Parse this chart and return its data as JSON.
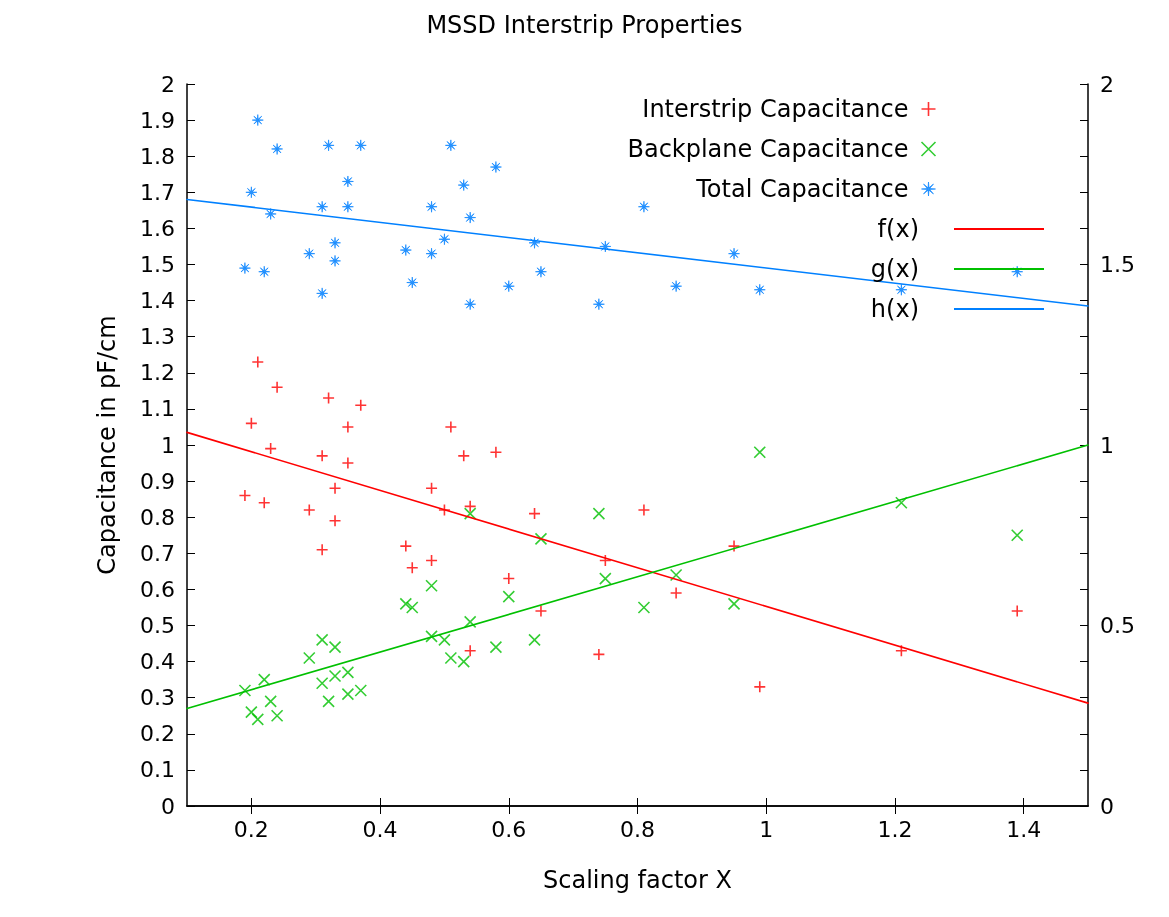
{
  "chart_data": {
    "type": "scatter",
    "title": "MSSD Interstrip Properties",
    "xlabel": "Scaling factor X",
    "ylabel": "Capacitance in pF/cm",
    "xlim": [
      0.1,
      1.5
    ],
    "xticks": [
      0.2,
      0.4,
      0.6,
      0.8,
      1,
      1.2,
      1.4
    ],
    "ylim": [
      0,
      2
    ],
    "yticks": [
      0,
      0.1,
      0.2,
      0.3,
      0.4,
      0.5,
      0.6,
      0.7,
      0.8,
      0.9,
      1,
      1.1,
      1.2,
      1.3,
      1.4,
      1.5,
      1.6,
      1.7,
      1.8,
      1.9,
      2
    ],
    "y2lim": [
      0,
      2
    ],
    "y2ticks": [
      0,
      {
        "value": 0.1,
        "label": null
      },
      {
        "value": 0.2,
        "label": null
      },
      {
        "value": 0.3,
        "label": null
      },
      {
        "value": 0.4,
        "label": null
      },
      0.5,
      {
        "value": 0.6,
        "label": null
      },
      {
        "value": 0.7,
        "label": null
      },
      {
        "value": 0.8,
        "label": null
      },
      {
        "value": 0.9,
        "label": null
      },
      1,
      {
        "value": 1.1,
        "label": null
      },
      {
        "value": 1.2,
        "label": null
      },
      {
        "value": 1.3,
        "label": null
      },
      {
        "value": 1.4,
        "label": null
      },
      1.5,
      {
        "value": 1.6,
        "label": null
      },
      {
        "value": 1.7,
        "label": null
      },
      {
        "value": 1.8,
        "label": null
      },
      {
        "value": 1.9,
        "label": null
      },
      2
    ],
    "legend": "top right",
    "series": [
      {
        "name": "Interstrip Capacitance",
        "color": "#ff0000",
        "marker": "plus",
        "x": [
          0.19,
          0.2,
          0.21,
          0.22,
          0.23,
          0.24,
          0.29,
          0.31,
          0.31,
          0.32,
          0.33,
          0.33,
          0.35,
          0.35,
          0.37,
          0.44,
          0.45,
          0.48,
          0.48,
          0.5,
          0.51,
          0.53,
          0.54,
          0.54,
          0.58,
          0.6,
          0.64,
          0.65,
          0.74,
          0.75,
          0.81,
          0.86,
          0.95,
          0.99,
          1.21,
          1.39
        ],
        "values": [
          0.86,
          1.06,
          1.23,
          0.84,
          0.99,
          1.16,
          0.82,
          0.97,
          0.71,
          1.13,
          0.88,
          0.79,
          1.05,
          0.95,
          1.11,
          0.72,
          0.66,
          0.88,
          0.68,
          0.82,
          1.05,
          0.97,
          0.83,
          0.43,
          0.98,
          0.63,
          0.81,
          0.54,
          0.42,
          0.68,
          0.82,
          0.59,
          0.72,
          0.33,
          0.43,
          0.54
        ]
      },
      {
        "name": "Backplane Capacitance",
        "color": "#00c000",
        "marker": "cross",
        "x": [
          0.19,
          0.2,
          0.21,
          0.22,
          0.23,
          0.24,
          0.29,
          0.31,
          0.31,
          0.32,
          0.33,
          0.33,
          0.35,
          0.35,
          0.37,
          0.44,
          0.45,
          0.48,
          0.48,
          0.5,
          0.51,
          0.53,
          0.54,
          0.54,
          0.58,
          0.6,
          0.64,
          0.65,
          0.74,
          0.75,
          0.81,
          0.86,
          0.95,
          0.99,
          1.21,
          1.39
        ],
        "values": [
          0.32,
          0.26,
          0.24,
          0.35,
          0.29,
          0.25,
          0.41,
          0.46,
          0.34,
          0.29,
          0.44,
          0.36,
          0.37,
          0.31,
          0.32,
          0.56,
          0.55,
          0.61,
          0.47,
          0.46,
          0.41,
          0.4,
          0.51,
          0.81,
          0.44,
          0.58,
          0.46,
          0.74,
          0.81,
          0.63,
          0.55,
          0.64,
          0.56,
          0.98,
          0.84,
          0.75
        ]
      },
      {
        "name": "Total Capacitance",
        "color": "#0080ff",
        "marker": "star",
        "x": [
          0.19,
          0.2,
          0.21,
          0.22,
          0.23,
          0.24,
          0.29,
          0.31,
          0.31,
          0.32,
          0.33,
          0.33,
          0.35,
          0.35,
          0.37,
          0.44,
          0.45,
          0.48,
          0.48,
          0.5,
          0.51,
          0.53,
          0.54,
          0.54,
          0.58,
          0.6,
          0.64,
          0.65,
          0.74,
          0.75,
          0.81,
          0.86,
          0.95,
          0.99,
          1.21,
          1.39
        ],
        "values": [
          1.49,
          1.7,
          1.9,
          1.48,
          1.64,
          1.82,
          1.53,
          1.66,
          1.42,
          1.83,
          1.56,
          1.51,
          1.73,
          1.66,
          1.83,
          1.54,
          1.45,
          1.66,
          1.53,
          1.57,
          1.83,
          1.72,
          1.63,
          1.39,
          1.77,
          1.44,
          1.56,
          1.48,
          1.39,
          1.55,
          1.66,
          1.44,
          1.53,
          1.43,
          1.43,
          1.48
        ]
      },
      {
        "name": "f(x)",
        "color": "#ff0000",
        "type": "line",
        "marker": "none",
        "line_style": "solid",
        "x": [
          0.1,
          1.5
        ],
        "values": [
          1.035,
          0.285
        ]
      },
      {
        "name": "g(x)",
        "color": "#00c000",
        "type": "line",
        "marker": "none",
        "line_style": "solid",
        "x": [
          0.1,
          1.5
        ],
        "values": [
          0.27,
          1.0
        ]
      },
      {
        "name": "h(x)",
        "color": "#0080ff",
        "type": "line",
        "marker": "none",
        "line_style": "solid",
        "x": [
          0.1,
          1.5
        ],
        "values": [
          1.68,
          1.385
        ]
      }
    ]
  }
}
